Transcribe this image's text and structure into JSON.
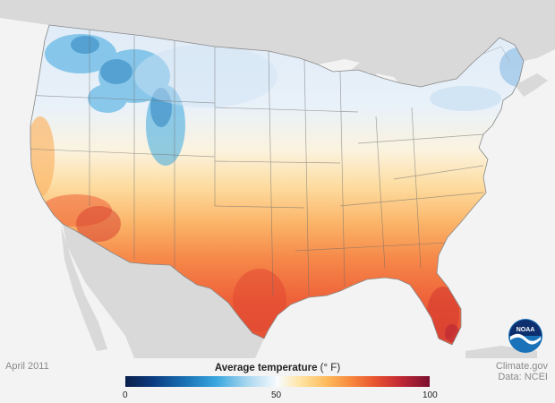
{
  "caption": {
    "date": "April 2011",
    "credit_line_1": "Climate.gov",
    "credit_line_2": "Data: NCEI"
  },
  "legend": {
    "title": "Average temperature",
    "unit": "(° F)",
    "ticks": [
      "0",
      "50",
      "100"
    ],
    "range": [
      0,
      100
    ]
  },
  "logo": {
    "text": "NOAA"
  },
  "colors": {
    "cold_strong": "#1a73b6",
    "cold_light": "#a9d6ef",
    "neutral": "#f7fbff",
    "warm_light": "#fdbb5c",
    "warm_strong": "#e8532f",
    "hot": "#7a1030",
    "land_neighbors": "#d6d6d6",
    "water": "#f3f3f3"
  }
}
